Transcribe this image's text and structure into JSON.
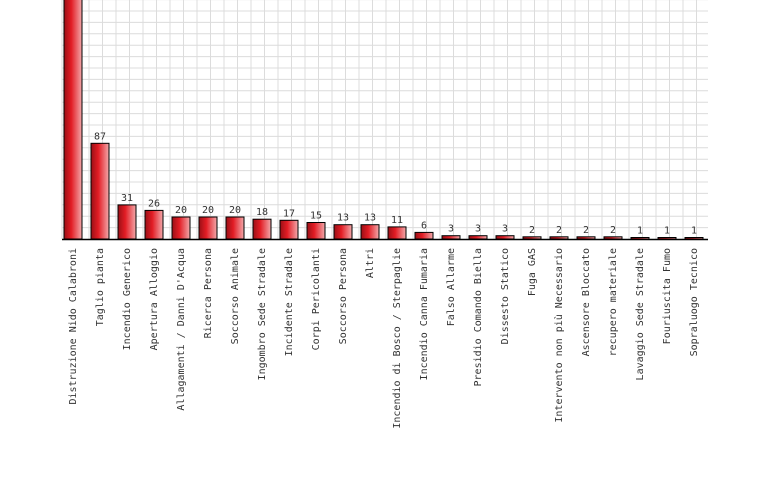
{
  "chart_data": {
    "type": "bar",
    "categories": [
      "Distruzione Nido Calabroni",
      "Taglio pianta",
      "Incendio Generico",
      "Apertura Alloggio",
      "Allagamenti / Danni D'Acqua",
      "Ricerca Persona",
      "Soccorso Animale",
      "Ingombro Sede Stradale",
      "Incidente Stradale",
      "Corpi Pericolanti",
      "Soccorso Persona",
      "Altri",
      "Incendio di Bosco / Sterpaglie",
      "Incendio Canna Fumaria",
      "Falso Allarme",
      "Presidio Comando Biella",
      "Dissesto Statico",
      "Fuga GAS",
      "Intervento non più Necessario",
      "Ascensore Bloccato",
      "recupero materiale",
      "Lavaggio Sede Stradale",
      "Fouriuscita Fumo",
      "Sopraluogo Tecnico"
    ],
    "values": [
      null,
      87,
      31,
      26,
      20,
      20,
      20,
      18,
      17,
      15,
      13,
      13,
      11,
      6,
      3,
      3,
      3,
      2,
      2,
      2,
      2,
      1,
      1,
      1
    ],
    "bar_color": "#e21c24",
    "bar_highlight": "#f3a9ab",
    "grid": true,
    "title": "",
    "xlabel": "",
    "ylabel": ""
  }
}
